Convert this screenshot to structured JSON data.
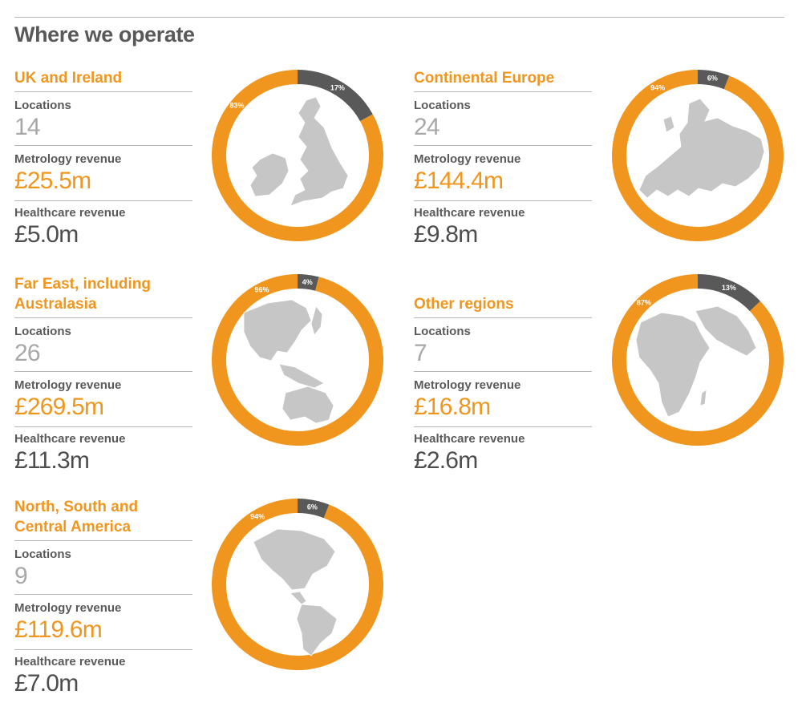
{
  "page": {
    "title": "Where we operate"
  },
  "stat_labels": {
    "locations": "Locations",
    "metrology": "Metrology revenue",
    "healthcare": "Healthcare revenue"
  },
  "colors": {
    "accent": "#f0961e",
    "dark": "#595959",
    "map": "#c6c6c6"
  },
  "regions": [
    {
      "title_line1": "UK and Ireland",
      "title_line2": "",
      "locations": "14",
      "metrology_revenue": "£25.5m",
      "healthcare_revenue": "£5.0m",
      "map_icon": "uk-ireland-map-icon"
    },
    {
      "title_line1": "Continental Europe",
      "title_line2": "",
      "locations": "24",
      "metrology_revenue": "£144.4m",
      "healthcare_revenue": "£9.8m",
      "map_icon": "europe-map-icon"
    },
    {
      "title_line1": "Far East, including",
      "title_line2": "Australasia",
      "locations": "26",
      "metrology_revenue": "£269.5m",
      "healthcare_revenue": "£11.3m",
      "map_icon": "asia-pacific-map-icon"
    },
    {
      "title_line1": "Other regions",
      "title_line2": "",
      "locations": "7",
      "metrology_revenue": "£16.8m",
      "healthcare_revenue": "£2.6m",
      "map_icon": "africa-middle-east-map-icon"
    },
    {
      "title_line1": "North, South and",
      "title_line2": "Central America",
      "locations": "9",
      "metrology_revenue": "£119.6m",
      "healthcare_revenue": "£7.0m",
      "map_icon": "americas-map-icon"
    }
  ],
  "chart_data": [
    {
      "type": "pie",
      "region": "UK and Ireland",
      "categories": [
        "Metrology",
        "Healthcare"
      ],
      "values": [
        83,
        17
      ],
      "labels": [
        "83%",
        "17%"
      ],
      "colors": [
        "#f0961e",
        "#595959"
      ]
    },
    {
      "type": "pie",
      "region": "Continental Europe",
      "categories": [
        "Metrology",
        "Healthcare"
      ],
      "values": [
        94,
        6
      ],
      "labels": [
        "94%",
        "6%"
      ],
      "colors": [
        "#f0961e",
        "#595959"
      ]
    },
    {
      "type": "pie",
      "region": "Far East, including Australasia",
      "categories": [
        "Metrology",
        "Healthcare"
      ],
      "values": [
        96,
        4
      ],
      "labels": [
        "96%",
        "4%"
      ],
      "colors": [
        "#f0961e",
        "#595959"
      ]
    },
    {
      "type": "pie",
      "region": "Other regions",
      "categories": [
        "Metrology",
        "Healthcare"
      ],
      "values": [
        87,
        13
      ],
      "labels": [
        "87%",
        "13%"
      ],
      "colors": [
        "#f0961e",
        "#595959"
      ]
    },
    {
      "type": "pie",
      "region": "North, South and Central America",
      "categories": [
        "Metrology",
        "Healthcare"
      ],
      "values": [
        94,
        6
      ],
      "labels": [
        "94%",
        "6%"
      ],
      "colors": [
        "#f0961e",
        "#595959"
      ]
    }
  ]
}
